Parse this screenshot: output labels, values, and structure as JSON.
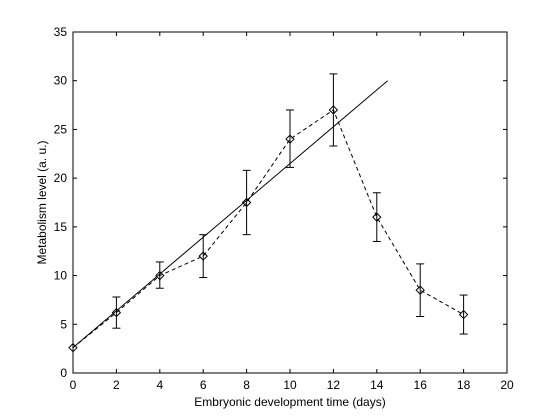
{
  "chart_data": {
    "type": "line",
    "title": "",
    "xlabel": "Embryonic development time (days)",
    "ylabel": "Metabolism level (a. u.)",
    "xlim": [
      0,
      20
    ],
    "ylim": [
      0,
      35
    ],
    "xticks": [
      0,
      2,
      4,
      6,
      8,
      10,
      12,
      14,
      16,
      18,
      20
    ],
    "yticks": [
      0,
      5,
      10,
      15,
      20,
      25,
      30,
      35
    ],
    "grid": false,
    "legend": "none",
    "series": [
      {
        "style": "dashed",
        "marker": "diamond",
        "color": "#000000",
        "x": [
          0,
          2,
          4,
          6,
          8,
          10,
          12,
          14,
          16,
          18
        ],
        "y": [
          2.6,
          6.2,
          10.0,
          12.0,
          17.5,
          24.0,
          27.0,
          16.0,
          8.5,
          6.0
        ],
        "error_low": [
          0,
          1.6,
          1.3,
          2.2,
          3.3,
          2.9,
          3.7,
          2.5,
          2.7,
          2.0
        ],
        "error_high": [
          0,
          1.6,
          1.4,
          2.2,
          3.3,
          3.0,
          3.7,
          2.5,
          2.7,
          2.0
        ]
      },
      {
        "style": "solid",
        "marker": "none",
        "color": "#000000",
        "x": [
          0,
          14.5
        ],
        "y": [
          2.6,
          30.0
        ]
      }
    ]
  }
}
